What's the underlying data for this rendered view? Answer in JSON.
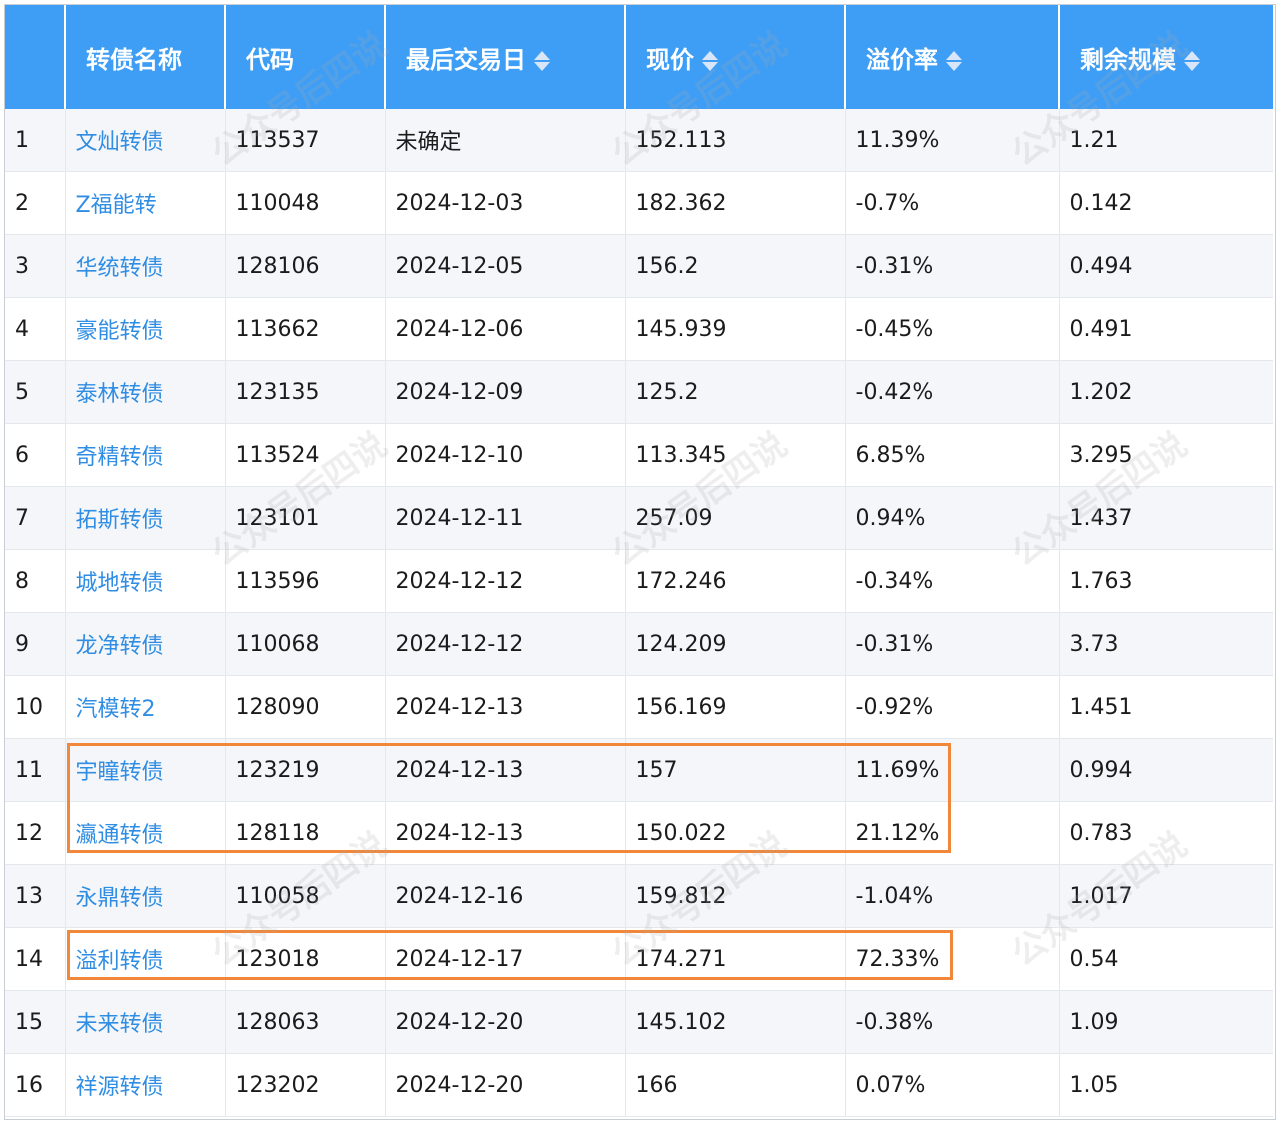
{
  "colors": {
    "header_bg": "#3e9ef6",
    "link": "#2f8de4",
    "highlight_border": "#f0873a"
  },
  "watermark": "公众号后四说",
  "headers": {
    "index": "",
    "name": "转债名称",
    "code": "代码",
    "last_trade_date": "最后交易日",
    "price": "现价",
    "premium": "溢价率",
    "remaining": "剩余规模"
  },
  "rows": [
    {
      "idx": "1",
      "name": "文灿转债",
      "code": "113537",
      "date": "未确定",
      "price": "152.113",
      "premium": "11.39%",
      "remaining": "1.21"
    },
    {
      "idx": "2",
      "name": "Z福能转",
      "code": "110048",
      "date": "2024-12-03",
      "price": "182.362",
      "premium": "-0.7%",
      "remaining": "0.142"
    },
    {
      "idx": "3",
      "name": "华统转债",
      "code": "128106",
      "date": "2024-12-05",
      "price": "156.2",
      "premium": "-0.31%",
      "remaining": "0.494"
    },
    {
      "idx": "4",
      "name": "豪能转债",
      "code": "113662",
      "date": "2024-12-06",
      "price": "145.939",
      "premium": "-0.45%",
      "remaining": "0.491"
    },
    {
      "idx": "5",
      "name": "泰林转债",
      "code": "123135",
      "date": "2024-12-09",
      "price": "125.2",
      "premium": "-0.42%",
      "remaining": "1.202"
    },
    {
      "idx": "6",
      "name": "奇精转债",
      "code": "113524",
      "date": "2024-12-10",
      "price": "113.345",
      "premium": "6.85%",
      "remaining": "3.295"
    },
    {
      "idx": "7",
      "name": "拓斯转债",
      "code": "123101",
      "date": "2024-12-11",
      "price": "257.09",
      "premium": "0.94%",
      "remaining": "1.437"
    },
    {
      "idx": "8",
      "name": "城地转债",
      "code": "113596",
      "date": "2024-12-12",
      "price": "172.246",
      "premium": "-0.34%",
      "remaining": "1.763"
    },
    {
      "idx": "9",
      "name": "龙净转债",
      "code": "110068",
      "date": "2024-12-12",
      "price": "124.209",
      "premium": "-0.31%",
      "remaining": "3.73"
    },
    {
      "idx": "10",
      "name": "汽模转2",
      "code": "128090",
      "date": "2024-12-13",
      "price": "156.169",
      "premium": "-0.92%",
      "remaining": "1.451"
    },
    {
      "idx": "11",
      "name": "宇瞳转债",
      "code": "123219",
      "date": "2024-12-13",
      "price": "157",
      "premium": "11.69%",
      "remaining": "0.994"
    },
    {
      "idx": "12",
      "name": "瀛通转债",
      "code": "128118",
      "date": "2024-12-13",
      "price": "150.022",
      "premium": "21.12%",
      "remaining": "0.783"
    },
    {
      "idx": "13",
      "name": "永鼎转债",
      "code": "110058",
      "date": "2024-12-16",
      "price": "159.812",
      "premium": "-1.04%",
      "remaining": "1.017"
    },
    {
      "idx": "14",
      "name": "溢利转债",
      "code": "123018",
      "date": "2024-12-17",
      "price": "174.271",
      "premium": "72.33%",
      "remaining": "0.54"
    },
    {
      "idx": "15",
      "name": "未来转债",
      "code": "128063",
      "date": "2024-12-20",
      "price": "145.102",
      "premium": "-0.38%",
      "remaining": "1.09"
    },
    {
      "idx": "16",
      "name": "祥源转债",
      "code": "123202",
      "date": "2024-12-20",
      "price": "166",
      "premium": "0.07%",
      "remaining": "1.05"
    }
  ]
}
